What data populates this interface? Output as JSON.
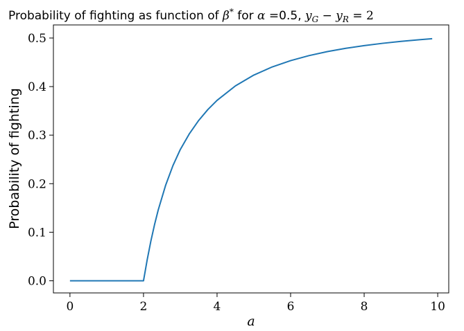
{
  "chart_data": {
    "type": "line",
    "title": {
      "prefix": "Probability of fighting as function of ",
      "beta_symbol": "β",
      "beta_sup": "*",
      "for_text": " for ",
      "alpha_symbol": "α",
      "alpha_value": " =0.5, ",
      "y_symbol_1": "y",
      "y_sub_1": "G",
      "minus": " − ",
      "y_symbol_2": "y",
      "y_sub_2": "R",
      "equals": " = 2"
    },
    "xlabel": "a",
    "ylabel": "Probability of fighting",
    "xlim": [
      -0.45,
      10.3
    ],
    "ylim": [
      -0.025,
      0.527
    ],
    "xticks": [
      0,
      2,
      4,
      6,
      8,
      10
    ],
    "yticks": [
      0.0,
      0.1,
      0.2,
      0.3,
      0.4,
      0.5
    ],
    "xtick_labels": [
      "0",
      "2",
      "4",
      "6",
      "8",
      "10"
    ],
    "ytick_labels": [
      "0.0",
      "0.1",
      "0.2",
      "0.3",
      "0.4",
      "0.5"
    ],
    "grid": false,
    "line_color": "#1f77b4",
    "series": [
      {
        "x": [
          0,
          0.5,
          1.0,
          1.5,
          2.0,
          2.1,
          2.2,
          2.3,
          2.4,
          2.6,
          2.8,
          3.0,
          3.25,
          3.5,
          3.75,
          4.0,
          4.5,
          5.0,
          5.5,
          6.0,
          6.5,
          7.0,
          7.5,
          8.0,
          8.5,
          9.0,
          9.5,
          9.85
        ],
        "y": [
          0,
          0,
          0,
          0,
          0,
          0.0432,
          0.0817,
          0.1156,
          0.1458,
          0.1964,
          0.2372,
          0.2703,
          0.3032,
          0.3302,
          0.3527,
          0.3716,
          0.4015,
          0.4237,
          0.4405,
          0.4535,
          0.4638,
          0.4721,
          0.4789,
          0.4844,
          0.4891,
          0.4931,
          0.4965,
          0.4986
        ]
      }
    ]
  }
}
